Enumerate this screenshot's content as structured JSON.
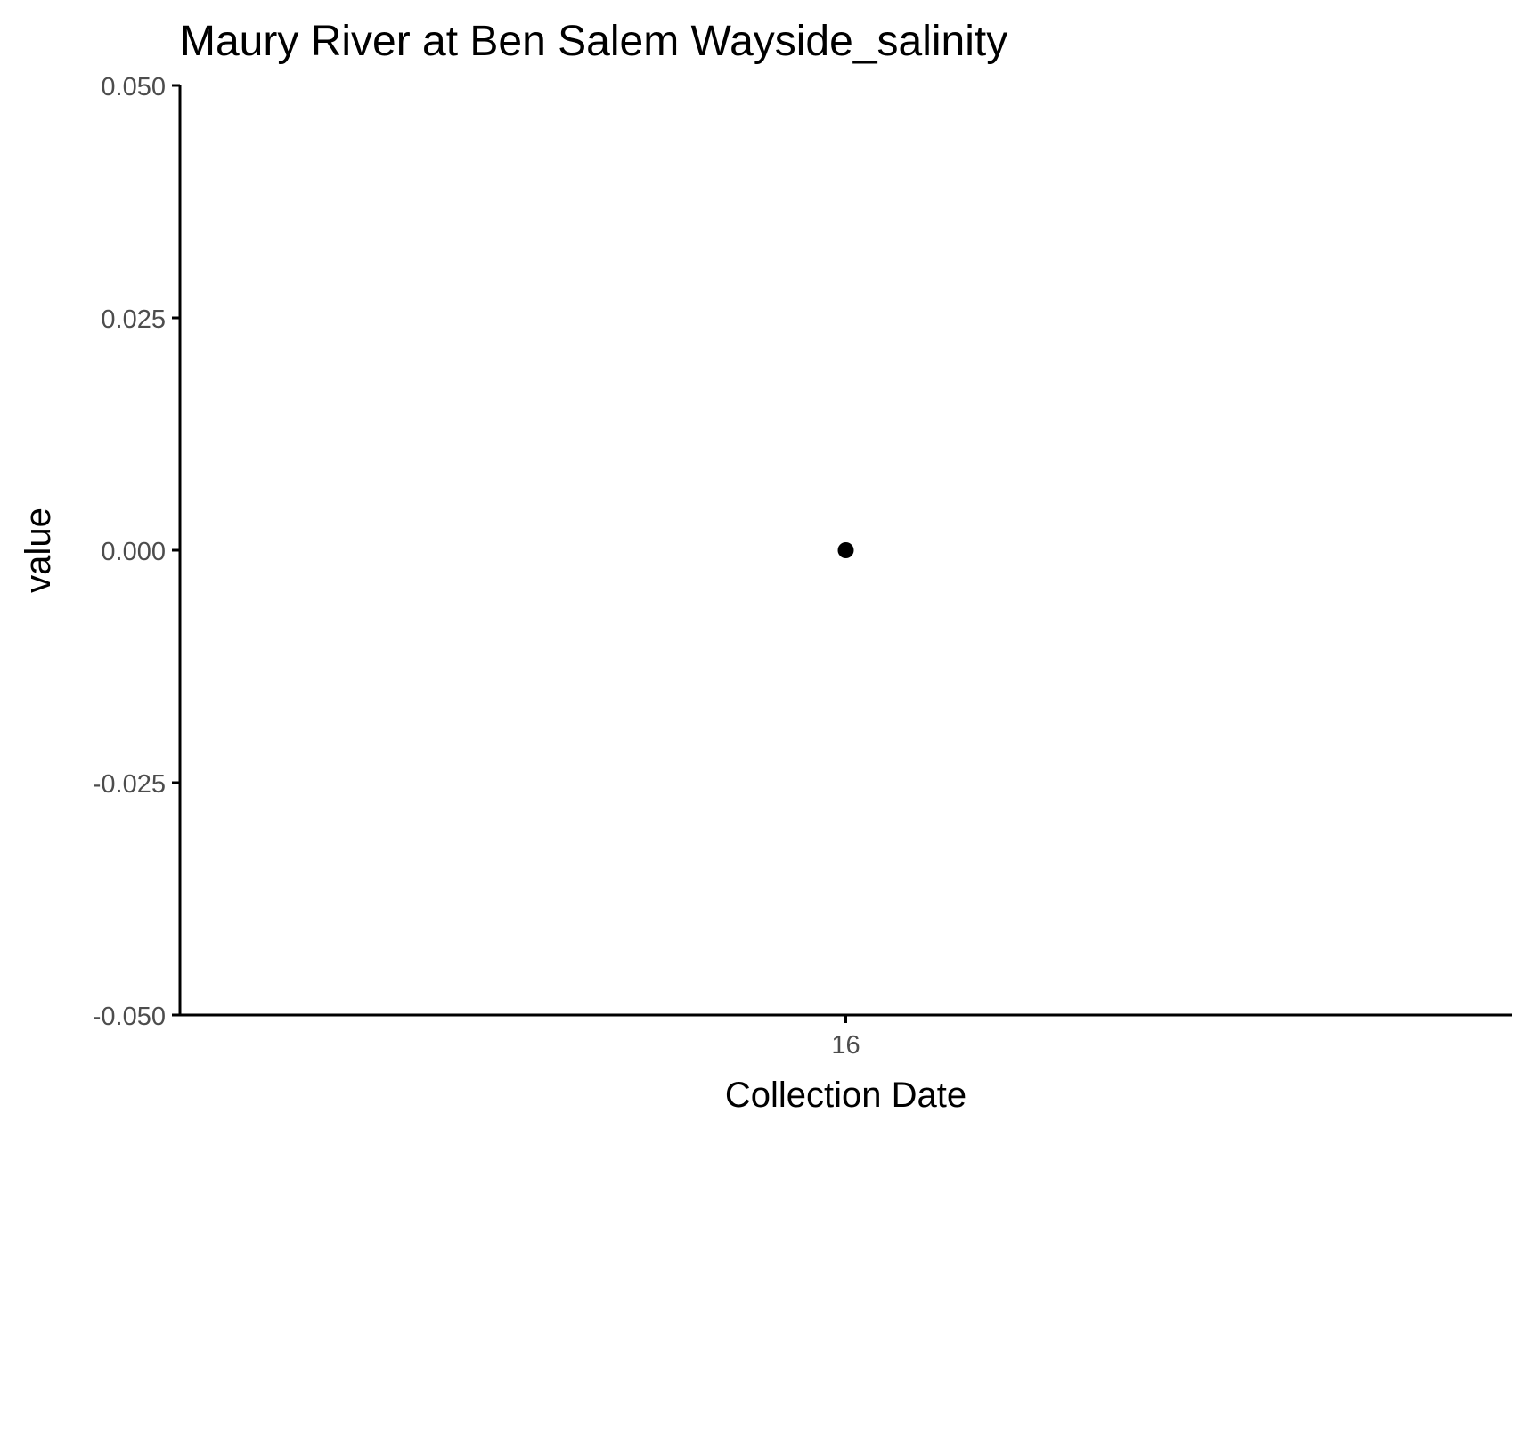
{
  "chart_data": {
    "type": "scatter",
    "title": "Maury River at Ben Salem Wayside_salinity",
    "xlabel": "Collection Date",
    "ylabel": "value",
    "x_categories": [
      "16"
    ],
    "points": [
      {
        "x": "16",
        "y": 0.0
      }
    ],
    "ylim": [
      -0.05,
      0.05
    ],
    "y_ticks": [
      -0.05,
      -0.025,
      0.0,
      0.025,
      0.05
    ],
    "y_tick_labels": [
      "-0.050",
      "-0.025",
      "0.000",
      "0.025",
      "0.050"
    ],
    "grid": false,
    "colors": {
      "axis": "#000000",
      "point": "#000000",
      "tick_text": "#4d4d4d",
      "background": "#ffffff"
    }
  }
}
